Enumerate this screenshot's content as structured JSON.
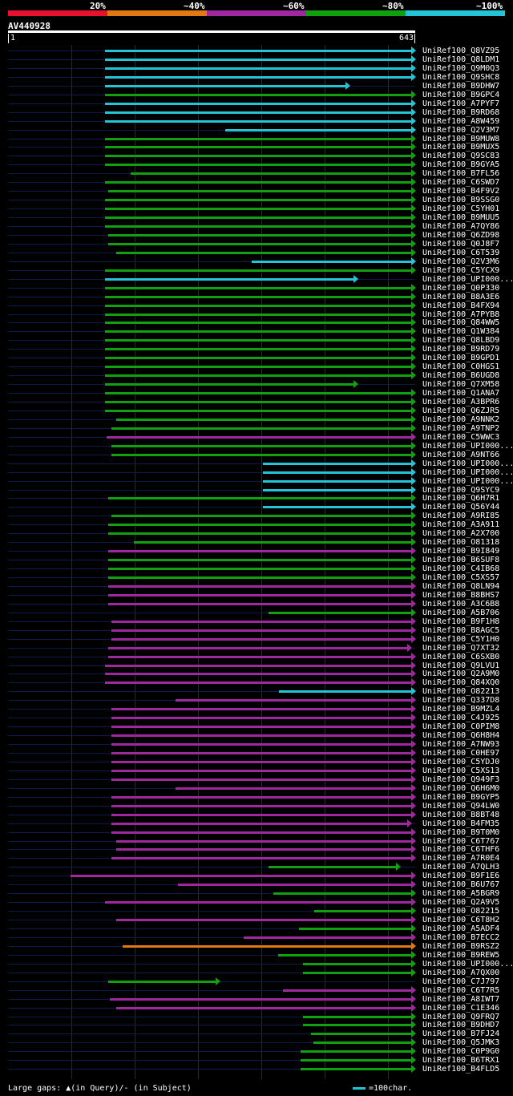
{
  "legend": {
    "labels": [
      "20%",
      "~40%",
      "~60%",
      "~80%",
      "~100%"
    ],
    "colors": [
      "#e8112d",
      "#e07a10",
      "#a0289e",
      "#10a010",
      "#22c4d6"
    ]
  },
  "query": {
    "name": "AV440928",
    "start": "1",
    "end": "643"
  },
  "footer": {
    "gaps_text": "Large gaps: ▲(in Query)/- (in Subject)",
    "scale_text": "=100char."
  },
  "hits": [
    {
      "label": "UniRef100_Q8VZ95",
      "color": "cyan",
      "start": 131,
      "end": 518
    },
    {
      "label": "UniRef100_Q8LDM1",
      "color": "cyan",
      "start": 131,
      "end": 518
    },
    {
      "label": "UniRef100_Q9M0Q3",
      "color": "cyan",
      "start": 131,
      "end": 518
    },
    {
      "label": "UniRef100_Q9SHC8",
      "color": "cyan",
      "start": 131,
      "end": 518
    },
    {
      "label": "UniRef100_B9DHW7",
      "color": "cyan",
      "start": 131,
      "end": 436
    },
    {
      "label": "UniRef100_B9GPC4",
      "color": "green",
      "start": 131,
      "end": 518
    },
    {
      "label": "UniRef100_A7PYF7",
      "color": "cyan",
      "start": 131,
      "end": 518
    },
    {
      "label": "UniRef100_B9RD68",
      "color": "cyan",
      "start": 131,
      "end": 518
    },
    {
      "label": "UniRef100_A8W459",
      "color": "cyan",
      "start": 131,
      "end": 518
    },
    {
      "label": "UniRef100_Q2V3M7",
      "color": "cyan",
      "start": 281,
      "end": 518
    },
    {
      "label": "UniRef100_B9MUW8",
      "color": "green",
      "start": 131,
      "end": 518
    },
    {
      "label": "UniRef100_B9MUX5",
      "color": "green",
      "start": 131,
      "end": 518
    },
    {
      "label": "UniRef100_Q9SC83",
      "color": "green",
      "start": 131,
      "end": 518
    },
    {
      "label": "UniRef100_B9GYA5",
      "color": "green",
      "start": 131,
      "end": 518
    },
    {
      "label": "UniRef100_B7FL56",
      "color": "green",
      "start": 163,
      "end": 518
    },
    {
      "label": "UniRef100_C6SWD7",
      "color": "green",
      "start": 131,
      "end": 518
    },
    {
      "label": "UniRef100_B4F9V2",
      "color": "green",
      "start": 135,
      "end": 518
    },
    {
      "label": "UniRef100_B9SSG0",
      "color": "green",
      "start": 131,
      "end": 518
    },
    {
      "label": "UniRef100_C5YH01",
      "color": "green",
      "start": 131,
      "end": 518
    },
    {
      "label": "UniRef100_B9MUU5",
      "color": "green",
      "start": 131,
      "end": 518
    },
    {
      "label": "UniRef100_A7QY86",
      "color": "green",
      "start": 131,
      "end": 518
    },
    {
      "label": "UniRef100_Q6ZD98",
      "color": "green",
      "start": 135,
      "end": 518
    },
    {
      "label": "UniRef100_Q0J8F7",
      "color": "green",
      "start": 135,
      "end": 518
    },
    {
      "label": "UniRef100_C6T539",
      "color": "green",
      "start": 145,
      "end": 518
    },
    {
      "label": "UniRef100_Q2V3M6",
      "color": "cyan",
      "start": 314,
      "end": 518
    },
    {
      "label": "UniRef100_C5YCX9",
      "color": "green",
      "start": 131,
      "end": 518
    },
    {
      "label": "UniRef100_UPI000...",
      "color": "cyan",
      "start": 131,
      "end": 446
    },
    {
      "label": "UniRef100_Q0P330",
      "color": "green",
      "start": 131,
      "end": 518
    },
    {
      "label": "UniRef100_B8A3E6",
      "color": "green",
      "start": 131,
      "end": 518
    },
    {
      "label": "UniRef100_B4FX94",
      "color": "green",
      "start": 131,
      "end": 518
    },
    {
      "label": "UniRef100_A7PYB8",
      "color": "green",
      "start": 131,
      "end": 518
    },
    {
      "label": "UniRef100_Q84WW5",
      "color": "green",
      "start": 131,
      "end": 518
    },
    {
      "label": "UniRef100_Q1W384",
      "color": "green",
      "start": 131,
      "end": 518
    },
    {
      "label": "UniRef100_Q8LBD9",
      "color": "green",
      "start": 131,
      "end": 518
    },
    {
      "label": "UniRef100_B9RD79",
      "color": "green",
      "start": 131,
      "end": 518
    },
    {
      "label": "UniRef100_B9GPD1",
      "color": "green",
      "start": 131,
      "end": 518
    },
    {
      "label": "UniRef100_C0HGS1",
      "color": "green",
      "start": 131,
      "end": 518
    },
    {
      "label": "UniRef100_B6UGD8",
      "color": "green",
      "start": 131,
      "end": 518
    },
    {
      "label": "UniRef100_Q7XM58",
      "color": "green",
      "start": 131,
      "end": 446
    },
    {
      "label": "UniRef100_Q1ANA7",
      "color": "green",
      "start": 131,
      "end": 518
    },
    {
      "label": "UniRef100_A3BPR6",
      "color": "green",
      "start": 131,
      "end": 518
    },
    {
      "label": "UniRef100_Q6ZJR5",
      "color": "green",
      "start": 131,
      "end": 518
    },
    {
      "label": "UniRef100_A9NNK2",
      "color": "green",
      "start": 145,
      "end": 518
    },
    {
      "label": "UniRef100_A9TNP2",
      "color": "green",
      "start": 139,
      "end": 518
    },
    {
      "label": "UniRef100_C5WWC3",
      "color": "purple",
      "start": 133,
      "end": 518
    },
    {
      "label": "UniRef100_UPI000...",
      "color": "green",
      "start": 139,
      "end": 518
    },
    {
      "label": "UniRef100_A9NT66",
      "color": "green",
      "start": 139,
      "end": 518
    },
    {
      "label": "UniRef100_UPI000...",
      "color": "cyan",
      "start": 328,
      "end": 518
    },
    {
      "label": "UniRef100_UPI000...",
      "color": "cyan",
      "start": 328,
      "end": 518
    },
    {
      "label": "UniRef100_UPI000...",
      "color": "cyan",
      "start": 328,
      "end": 518
    },
    {
      "label": "UniRef100_Q9SYC9",
      "color": "cyan",
      "start": 328,
      "end": 518
    },
    {
      "label": "UniRef100_Q6H7R1",
      "color": "green",
      "start": 135,
      "end": 518
    },
    {
      "label": "UniRef100_Q56Y44",
      "color": "cyan",
      "start": 328,
      "end": 518
    },
    {
      "label": "UniRef100_A9RI85",
      "color": "green",
      "start": 139,
      "end": 518
    },
    {
      "label": "UniRef100_A3A911",
      "color": "green",
      "start": 135,
      "end": 518
    },
    {
      "label": "UniRef100_A2X700",
      "color": "green",
      "start": 135,
      "end": 518
    },
    {
      "label": "UniRef100_O81318",
      "color": "green",
      "start": 167,
      "end": 518
    },
    {
      "label": "UniRef100_B9I849",
      "color": "purple",
      "start": 135,
      "end": 518
    },
    {
      "label": "UniRef100_B6SUF8",
      "color": "green",
      "start": 135,
      "end": 518
    },
    {
      "label": "UniRef100_C4IB68",
      "color": "green",
      "start": 135,
      "end": 518
    },
    {
      "label": "UniRef100_C5XS57",
      "color": "green",
      "start": 135,
      "end": 518
    },
    {
      "label": "UniRef100_Q8LN94",
      "color": "purple",
      "start": 135,
      "end": 518
    },
    {
      "label": "UniRef100_B8BHS7",
      "color": "purple",
      "start": 135,
      "end": 518
    },
    {
      "label": "UniRef100_A3C6B8",
      "color": "purple",
      "start": 135,
      "end": 518
    },
    {
      "label": "UniRef100_A5B706",
      "color": "green",
      "start": 335,
      "end": 518
    },
    {
      "label": "UniRef100_B9F1H8",
      "color": "purple",
      "start": 139,
      "end": 518
    },
    {
      "label": "UniRef100_B8AGC5",
      "color": "purple",
      "start": 139,
      "end": 518
    },
    {
      "label": "UniRef100_C5Y1H0",
      "color": "purple",
      "start": 139,
      "end": 518
    },
    {
      "label": "UniRef100_Q7XT32",
      "color": "purple",
      "start": 135,
      "end": 513
    },
    {
      "label": "UniRef100_C6SXB0",
      "color": "purple",
      "start": 135,
      "end": 518
    },
    {
      "label": "UniRef100_Q9LVU1",
      "color": "purple",
      "start": 131,
      "end": 518
    },
    {
      "label": "UniRef100_Q2A9M0",
      "color": "purple",
      "start": 131,
      "end": 518
    },
    {
      "label": "UniRef100_Q84XQ0",
      "color": "purple",
      "start": 131,
      "end": 518
    },
    {
      "label": "UniRef100_O82213",
      "color": "cyan",
      "start": 348,
      "end": 518
    },
    {
      "label": "UniRef100_Q337D8",
      "color": "purple",
      "start": 219,
      "end": 518
    },
    {
      "label": "UniRef100_B9MZL4",
      "color": "purple",
      "start": 139,
      "end": 518
    },
    {
      "label": "UniRef100_C4J925",
      "color": "purple",
      "start": 139,
      "end": 518
    },
    {
      "label": "UniRef100_C0PIM8",
      "color": "purple",
      "start": 139,
      "end": 518
    },
    {
      "label": "UniRef100_Q6H8H4",
      "color": "purple",
      "start": 139,
      "end": 518
    },
    {
      "label": "UniRef100_A7NW93",
      "color": "purple",
      "start": 139,
      "end": 518
    },
    {
      "label": "UniRef100_C0HE97",
      "color": "purple",
      "start": 139,
      "end": 518
    },
    {
      "label": "UniRef100_C5YDJ0",
      "color": "purple",
      "start": 139,
      "end": 518
    },
    {
      "label": "UniRef100_C5XS13",
      "color": "purple",
      "start": 139,
      "end": 518
    },
    {
      "label": "UniRef100_Q949F3",
      "color": "purple",
      "start": 139,
      "end": 518
    },
    {
      "label": "UniRef100_Q6H6M0",
      "color": "purple",
      "start": 219,
      "end": 518
    },
    {
      "label": "UniRef100_B9GYP5",
      "color": "purple",
      "start": 139,
      "end": 518
    },
    {
      "label": "UniRef100_Q94LW0",
      "color": "purple",
      "start": 139,
      "end": 518
    },
    {
      "label": "UniRef100_B8BT48",
      "color": "purple",
      "start": 139,
      "end": 518
    },
    {
      "label": "UniRef100_B4FM35",
      "color": "purple",
      "start": 139,
      "end": 513
    },
    {
      "label": "UniRef100_B9T0M0",
      "color": "purple",
      "start": 139,
      "end": 518
    },
    {
      "label": "UniRef100_C6T767",
      "color": "purple",
      "start": 145,
      "end": 518
    },
    {
      "label": "UniRef100_C6THF6",
      "color": "purple",
      "start": 145,
      "end": 518
    },
    {
      "label": "UniRef100_A7R0E4",
      "color": "purple",
      "start": 139,
      "end": 518
    },
    {
      "label": "UniRef100_A7QLH3",
      "color": "green",
      "start": 335,
      "end": 499
    },
    {
      "label": "UniRef100_B9F1E6",
      "color": "purple",
      "start": 88,
      "end": 518
    },
    {
      "label": "UniRef100_B6U767",
      "color": "purple",
      "start": 222,
      "end": 518
    },
    {
      "label": "UniRef100_A5BGR9",
      "color": "green",
      "start": 341,
      "end": 518
    },
    {
      "label": "UniRef100_Q2A9V5",
      "color": "purple",
      "start": 131,
      "end": 518
    },
    {
      "label": "UniRef100_O82215",
      "color": "green",
      "start": 392,
      "end": 518
    },
    {
      "label": "UniRef100_C6T8H2",
      "color": "purple",
      "start": 145,
      "end": 518
    },
    {
      "label": "UniRef100_A5ADF4",
      "color": "green",
      "start": 373,
      "end": 518
    },
    {
      "label": "UniRef100_B7ECC2",
      "color": "purple",
      "start": 304,
      "end": 518
    },
    {
      "label": "UniRef100_B9RSZ2",
      "color": "orange",
      "start": 153,
      "end": 518
    },
    {
      "label": "UniRef100_B9REW5",
      "color": "green",
      "start": 347,
      "end": 518
    },
    {
      "label": "UniRef100_UPI000...",
      "color": "green",
      "start": 378,
      "end": 518
    },
    {
      "label": "UniRef100_A7QX00",
      "color": "green",
      "start": 378,
      "end": 518
    },
    {
      "label": "UniRef100_C7J797",
      "color": "green",
      "start": 135,
      "end": 274
    },
    {
      "label": "UniRef100_C6T7R5",
      "color": "purple",
      "start": 353,
      "end": 518
    },
    {
      "label": "UniRef100_A8IWT7",
      "color": "purple",
      "start": 137,
      "end": 518
    },
    {
      "label": "UniRef100_C1E346",
      "color": "purple",
      "start": 145,
      "end": 518
    },
    {
      "label": "UniRef100_Q9FRQ7",
      "color": "green",
      "start": 378,
      "end": 518
    },
    {
      "label": "UniRef100_B9DHD7",
      "color": "green",
      "start": 378,
      "end": 518
    },
    {
      "label": "UniRef100_B7FJ24",
      "color": "green",
      "start": 388,
      "end": 518
    },
    {
      "label": "UniRef100_Q5JMK3",
      "color": "green",
      "start": 391,
      "end": 518
    },
    {
      "label": "UniRef100_C0P9G0",
      "color": "green",
      "start": 375,
      "end": 518
    },
    {
      "label": "UniRef100_B6TRX1",
      "color": "green",
      "start": 375,
      "end": 518
    },
    {
      "label": "UniRef100_B4FLD5",
      "color": "green",
      "start": 375,
      "end": 518
    }
  ]
}
